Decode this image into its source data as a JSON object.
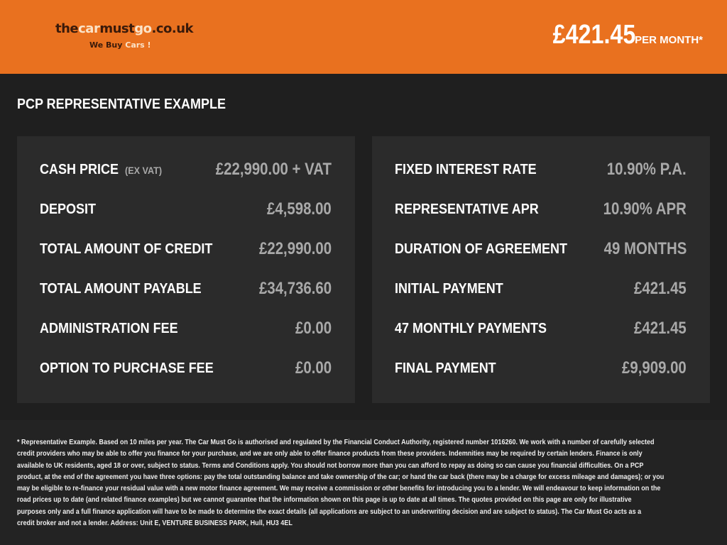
{
  "header": {
    "logo": {
      "part1": "the",
      "part2": "car",
      "part3": "must",
      "part4": "go",
      "part5": ".co.uk",
      "tag1": "We Buy ",
      "tag2": "Cars !"
    },
    "price": "£421.45",
    "price_unit": "PER MONTH*"
  },
  "title": "PCP REPRESENTATIVE EXAMPLE",
  "left_panel": [
    {
      "label": "CASH PRICE",
      "note": "(EX VAT)",
      "value": "£22,990.00 + VAT"
    },
    {
      "label": "DEPOSIT",
      "value": "£4,598.00"
    },
    {
      "label": "TOTAL AMOUNT OF CREDIT",
      "value": "£22,990.00"
    },
    {
      "label": "TOTAL AMOUNT PAYABLE",
      "value": "£34,736.60"
    },
    {
      "label": "ADMINISTRATION FEE",
      "value": "£0.00"
    },
    {
      "label": "OPTION TO PURCHASE FEE",
      "value": "£0.00"
    }
  ],
  "right_panel": [
    {
      "label": "FIXED INTEREST RATE",
      "value": "10.90% P.A."
    },
    {
      "label": "REPRESENTATIVE APR",
      "value": "10.90% APR"
    },
    {
      "label": "DURATION OF AGREEMENT",
      "value": "49 MONTHS"
    },
    {
      "label": "INITIAL PAYMENT",
      "value": "£421.45"
    },
    {
      "label": "47 MONTHLY PAYMENTS",
      "value": "£421.45"
    },
    {
      "label": "FINAL PAYMENT",
      "value": "£9,909.00"
    }
  ],
  "disclaimer_lines": [
    "* Representative Example. Based on 10 miles per year. The Car Must Go is authorised and regulated by the Financial Conduct Authority, registered number 1016260. We work with a number of carefully selected",
    "credit providers who may be able to offer you finance for your purchase, and we are only able to offer finance products from these providers. Indemnities may be required by certain lenders. Finance is only",
    "available to UK residents, aged 18 or over, subject to status. Terms and Conditions apply. You should not borrow more than you can afford to repay as doing so can cause you financial difficulties. On a PCP",
    "product, at the end of the agreement you have three options: pay the total outstanding balance and take ownership of the car; or hand the car back (there may be a charge for excess mileage and damages); or you",
    "may be eligible to re-finance your residual value with a new motor finance agreement. We may receive a commission or other benefits for introducing you to a lender. We will endeavour to keep information on the",
    "road prices up to date (and related finance examples) but we cannot guarantee that the information shown on this page is up to date at all times. The quotes provided on this page are only for illustrative",
    "purposes only and a full finance application will have to be made to determine the exact details (all applications are subject to an underwriting decision and are subject to status). The Car Must Go acts as a",
    "credit broker and not a lender. Address: Unit E, VENTURE BUSINESS PARK, Hull, HU3 4EL"
  ]
}
